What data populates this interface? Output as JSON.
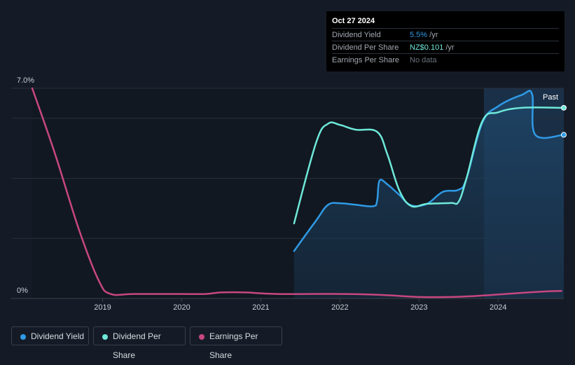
{
  "tooltip": {
    "date": "Oct 27 2024",
    "rows": [
      {
        "label": "Dividend Yield",
        "value": "5.5%",
        "unit": " /yr",
        "color": "#2f9ae6"
      },
      {
        "label": "Dividend Per Share",
        "value": "NZ$0.101",
        "unit": " /yr",
        "color": "#6ee8d9"
      },
      {
        "label": "Earnings Per Share",
        "value": "No data",
        "unit": "",
        "color": "#6a717c"
      }
    ]
  },
  "legend": [
    {
      "label": "Dividend Yield",
      "color": "#2f9ae6"
    },
    {
      "label": "Dividend Per Share",
      "color": "#6ee8d9"
    },
    {
      "label": "Earnings Per Share",
      "color": "#c7477f"
    }
  ],
  "chart_data": {
    "type": "line",
    "y_axis_labels": {
      "top": "7.0%",
      "bottom": "0%"
    },
    "ylim": [
      0,
      7.0
    ],
    "xlim": [
      2018.11,
      2024.83
    ],
    "x_ticks": [
      2019,
      2020,
      2021,
      2022,
      2023,
      2024
    ],
    "x_tick_labels": [
      "2019",
      "2020",
      "2021",
      "2022",
      "2023",
      "2024"
    ],
    "past_label": "Past",
    "past_region_start": 2023.82,
    "series": [
      {
        "name": "Dividend Yield",
        "color": "#2f9ae6",
        "area": true,
        "points": [
          [
            2021.42,
            1.58
          ],
          [
            2021.7,
            2.6
          ],
          [
            2021.85,
            3.12
          ],
          [
            2022.0,
            3.17
          ],
          [
            2022.2,
            3.12
          ],
          [
            2022.42,
            3.07
          ],
          [
            2022.47,
            3.25
          ],
          [
            2022.5,
            3.92
          ],
          [
            2022.6,
            3.8
          ],
          [
            2022.75,
            3.45
          ],
          [
            2022.9,
            3.1
          ],
          [
            2023.1,
            3.15
          ],
          [
            2023.3,
            3.55
          ],
          [
            2023.5,
            3.62
          ],
          [
            2023.6,
            4.0
          ],
          [
            2023.8,
            5.85
          ],
          [
            2024.0,
            6.4
          ],
          [
            2024.3,
            6.78
          ],
          [
            2024.43,
            6.8
          ],
          [
            2024.47,
            5.45
          ],
          [
            2024.83,
            5.45
          ]
        ]
      },
      {
        "name": "Dividend Per Share",
        "color": "#6ee8d9",
        "area": false,
        "points": [
          [
            2021.42,
            2.5
          ],
          [
            2021.7,
            5.2
          ],
          [
            2021.85,
            5.82
          ],
          [
            2022.0,
            5.78
          ],
          [
            2022.2,
            5.62
          ],
          [
            2022.47,
            5.55
          ],
          [
            2022.6,
            4.8
          ],
          [
            2022.75,
            3.6
          ],
          [
            2022.9,
            3.08
          ],
          [
            2023.1,
            3.15
          ],
          [
            2023.4,
            3.18
          ],
          [
            2023.5,
            3.22
          ],
          [
            2023.6,
            4.0
          ],
          [
            2023.8,
            5.9
          ],
          [
            2024.0,
            6.2
          ],
          [
            2024.3,
            6.35
          ],
          [
            2024.83,
            6.35
          ]
        ]
      },
      {
        "name": "Earnings Per Share",
        "color": "#c7477f",
        "area": false,
        "points": [
          [
            2018.11,
            7.0
          ],
          [
            2018.4,
            4.8
          ],
          [
            2018.7,
            2.3
          ],
          [
            2018.95,
            0.6
          ],
          [
            2019.1,
            0.15
          ],
          [
            2019.4,
            0.15
          ],
          [
            2020.0,
            0.15
          ],
          [
            2020.3,
            0.15
          ],
          [
            2020.5,
            0.2
          ],
          [
            2020.8,
            0.2
          ],
          [
            2021.2,
            0.15
          ],
          [
            2022.0,
            0.15
          ],
          [
            2022.5,
            0.12
          ],
          [
            2023.0,
            0.05
          ],
          [
            2023.4,
            0.05
          ],
          [
            2023.7,
            0.08
          ],
          [
            2024.1,
            0.15
          ],
          [
            2024.5,
            0.22
          ],
          [
            2024.8,
            0.25
          ]
        ]
      }
    ]
  }
}
